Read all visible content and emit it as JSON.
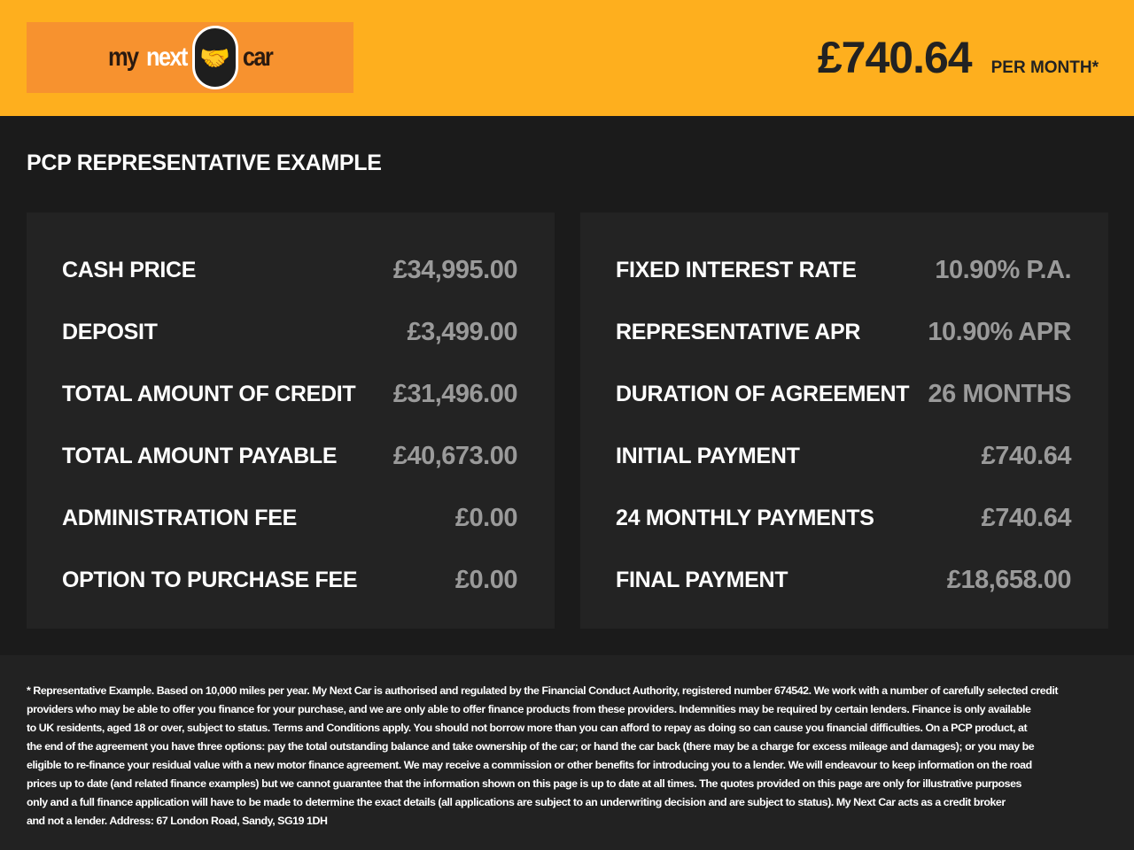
{
  "header": {
    "logo_text": [
      "my",
      "next",
      "car"
    ],
    "price": "£740.64",
    "per_month": "PER MONTH*"
  },
  "title": "PCP REPRESENTATIVE EXAMPLE",
  "left": [
    {
      "label": "CASH PRICE",
      "value": "£34,995.00"
    },
    {
      "label": "DEPOSIT",
      "value": "£3,499.00"
    },
    {
      "label": "TOTAL AMOUNT OF CREDIT",
      "value": "£31,496.00"
    },
    {
      "label": "TOTAL AMOUNT PAYABLE",
      "value": "£40,673.00"
    },
    {
      "label": "ADMINISTRATION FEE",
      "value": "£0.00"
    },
    {
      "label": "OPTION TO PURCHASE FEE",
      "value": "£0.00"
    }
  ],
  "right": [
    {
      "label": "FIXED INTEREST RATE",
      "value": "10.90% P.A."
    },
    {
      "label": "REPRESENTATIVE APR",
      "value": "10.90% APR"
    },
    {
      "label": "DURATION OF AGREEMENT",
      "value": "26 MONTHS"
    },
    {
      "label": "INITIAL PAYMENT",
      "value": "£740.64"
    },
    {
      "label": "24 MONTHLY PAYMENTS",
      "value": "£740.64"
    },
    {
      "label": "FINAL PAYMENT",
      "value": "£18,658.00"
    }
  ],
  "footer": [
    "* Representative Example. Based on 10,000 miles per year. My Next Car is authorised and regulated by the Financial Conduct Authority, registered number 674542. We work with a number of carefully selected credit",
    "providers who may be able to offer you finance for your purchase, and we are only able to offer finance products from these providers. Indemnities may be required by certain lenders. Finance is only available",
    "to UK residents, aged 18 or over, subject to status. Terms and Conditions apply. You should not borrow more than you can afford to repay as doing so can cause you financial difficulties. On a PCP product, at",
    "the end of the agreement you have three options: pay the total outstanding balance and take ownership of the car; or hand the car back (there may be a charge for excess mileage and damages); or you may be",
    "eligible to re-finance your residual value with a new motor finance agreement. We may receive a commission or other benefits for introducing you to a lender. We will endeavour to keep information on the road",
    "prices up to date (and related finance examples) but we cannot guarantee that the information shown on this page is up to date at all times. The quotes provided on this page are only for illustrative purposes",
    "only and a full finance application will have to be made to determine the exact details (all applications are subject to an underwriting decision and are subject to status). My Next Car acts as a credit broker",
    "and not a lender. Address: 67 London Road, Sandy, SG19 1DH"
  ]
}
